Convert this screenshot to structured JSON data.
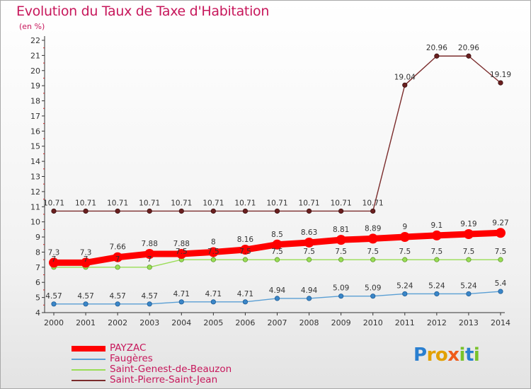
{
  "title": "Evolution du Taux de Taxe d'Habitation",
  "subtitle": "(en %)",
  "logo_text": "Proxiti",
  "chart_data": {
    "type": "line",
    "title": "Evolution du Taux de Taxe d'Habitation",
    "ylabel": "(en %)",
    "ylim": [
      4,
      22
    ],
    "yticks": [
      4,
      5,
      6,
      7,
      8,
      9,
      10,
      11,
      12,
      13,
      14,
      15,
      16,
      17,
      18,
      19,
      20,
      21,
      22
    ],
    "grid": false,
    "legend_position": "bottom-left",
    "x": [
      "2000",
      "2001",
      "2002",
      "2003",
      "2004",
      "2005",
      "2006",
      "2007",
      "2008",
      "2009",
      "2010",
      "2011",
      "2012",
      "2013",
      "2014"
    ],
    "series": [
      {
        "name": "PAYZAC",
        "color": "#ff0000",
        "labels": [
          "7.3",
          "7.3",
          "7.66",
          "7.88",
          "7.88",
          "8",
          "8.16",
          "8.5",
          "8.63",
          "8.81",
          "8.89",
          "9",
          "9.1",
          "9.19",
          "9.27"
        ],
        "values": [
          7.3,
          7.3,
          7.66,
          7.88,
          7.88,
          8,
          8.16,
          8.5,
          8.63,
          8.81,
          8.89,
          9,
          9.1,
          9.19,
          9.27
        ]
      },
      {
        "name": "Faugères",
        "color": "#5a9fd4",
        "labels": [
          "4.57",
          "4.57",
          "4.57",
          "4.57",
          "4.71",
          "4.71",
          "4.71",
          "4.94",
          "4.94",
          "5.09",
          "5.09",
          "5.24",
          "5.24",
          "5.24",
          "5.4"
        ],
        "values": [
          4.57,
          4.57,
          4.57,
          4.57,
          4.71,
          4.71,
          4.71,
          4.94,
          4.94,
          5.09,
          5.09,
          5.24,
          5.24,
          5.24,
          5.4
        ]
      },
      {
        "name": "Saint-Genest-de-Beauzon",
        "color": "#99dd55",
        "labels": [
          "7",
          "7",
          "7",
          "7",
          "7.5",
          "7.5",
          "7.5",
          "7.5",
          "7.5",
          "7.5",
          "7.5",
          "7.5",
          "7.5",
          "7.5",
          "7.5"
        ],
        "values": [
          7,
          7,
          7,
          7,
          7.5,
          7.5,
          7.5,
          7.5,
          7.5,
          7.5,
          7.5,
          7.5,
          7.5,
          7.5,
          7.5
        ]
      },
      {
        "name": "Saint-Pierre-Saint-Jean",
        "color": "#7b2c2c",
        "labels": [
          "10.71",
          "10.71",
          "10.71",
          "10.71",
          "10.71",
          "10.71",
          "10.71",
          "10.71",
          "10.71",
          "10.71",
          "10.71",
          "19.04",
          "20.96",
          "20.96",
          "19.19"
        ],
        "values": [
          10.71,
          10.71,
          10.71,
          10.71,
          10.71,
          10.71,
          10.71,
          10.71,
          10.71,
          10.71,
          10.71,
          19.04,
          20.96,
          20.96,
          19.19
        ]
      }
    ]
  }
}
